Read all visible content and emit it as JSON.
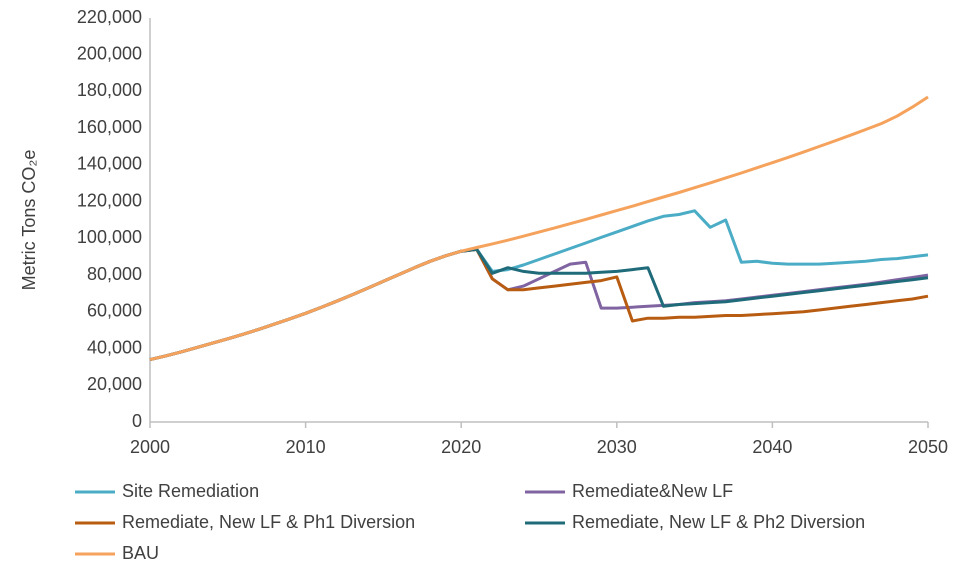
{
  "chart_data": {
    "type": "line",
    "ylabel": "Metric Tons CO₂e",
    "x": [
      2000,
      2001,
      2002,
      2003,
      2004,
      2005,
      2006,
      2007,
      2008,
      2009,
      2010,
      2011,
      2012,
      2013,
      2014,
      2015,
      2016,
      2017,
      2018,
      2019,
      2020,
      2021,
      2022,
      2023,
      2024,
      2025,
      2026,
      2027,
      2028,
      2029,
      2030,
      2031,
      2032,
      2033,
      2034,
      2035,
      2036,
      2037,
      2038,
      2039,
      2040,
      2041,
      2042,
      2043,
      2044,
      2045,
      2046,
      2047,
      2048,
      2049,
      2050
    ],
    "series": [
      {
        "name": "Site Remediation",
        "color": "#4bacc6",
        "values": [
          34000,
          36000,
          38200,
          40500,
          42900,
          45300,
          47800,
          50500,
          53300,
          56200,
          59200,
          62400,
          65800,
          69300,
          72900,
          76600,
          80300,
          84000,
          87500,
          90500,
          93000,
          94000,
          82000,
          83000,
          85500,
          88500,
          91500,
          94500,
          97500,
          100500,
          103500,
          106500,
          109500,
          112000,
          113000,
          115000,
          106000,
          110000,
          87000,
          87500,
          86500,
          86000,
          86000,
          86000,
          86500,
          87000,
          87500,
          88500,
          89000,
          90000,
          91000
        ]
      },
      {
        "name": "Remediate&New LF",
        "color": "#8064a2",
        "values": [
          34000,
          36000,
          38200,
          40500,
          42900,
          45300,
          47800,
          50500,
          53300,
          56200,
          59200,
          62400,
          65800,
          69300,
          72900,
          76600,
          80300,
          84000,
          87500,
          90500,
          93000,
          94000,
          78000,
          72000,
          74000,
          78000,
          82000,
          86000,
          87000,
          62000,
          62000,
          62500,
          63000,
          63500,
          64000,
          65000,
          65500,
          66000,
          67000,
          68000,
          69000,
          70000,
          71000,
          72000,
          73000,
          74000,
          75000,
          76200,
          77500,
          78700,
          80000
        ]
      },
      {
        "name": "Remediate, New LF & Ph1 Diversion",
        "color": "#b85c12",
        "values": [
          34000,
          36000,
          38200,
          40500,
          42900,
          45300,
          47800,
          50500,
          53300,
          56200,
          59200,
          62400,
          65800,
          69300,
          72900,
          76600,
          80300,
          84000,
          87500,
          90500,
          93000,
          94000,
          78000,
          72000,
          72000,
          73000,
          74000,
          75000,
          76000,
          77000,
          79000,
          55000,
          56500,
          56500,
          57000,
          57000,
          57500,
          58000,
          58000,
          58500,
          59000,
          59500,
          60000,
          61000,
          62000,
          63000,
          64000,
          65000,
          66000,
          67000,
          68500
        ]
      },
      {
        "name": "Remediate, New LF & Ph2 Diversion",
        "color": "#1f6b7a",
        "values": [
          34000,
          36000,
          38200,
          40500,
          42900,
          45300,
          47800,
          50500,
          53300,
          56200,
          59200,
          62400,
          65800,
          69300,
          72900,
          76600,
          80300,
          84000,
          87500,
          90500,
          93000,
          94000,
          81000,
          84000,
          82000,
          81000,
          81000,
          81000,
          81000,
          81500,
          82000,
          83000,
          84000,
          63000,
          64000,
          64500,
          65000,
          65500,
          66500,
          67500,
          68500,
          69500,
          70500,
          71500,
          72500,
          73500,
          74500,
          75500,
          76500,
          77500,
          78500
        ]
      },
      {
        "name": "BAU",
        "color": "#f5a25d",
        "values": [
          34000,
          36000,
          38200,
          40500,
          42900,
          45300,
          47800,
          50500,
          53300,
          56200,
          59200,
          62400,
          65800,
          69300,
          72900,
          76600,
          80300,
          84000,
          87500,
          90500,
          93000,
          95000,
          97000,
          99000,
          101200,
          103400,
          105700,
          108000,
          110300,
          112700,
          115100,
          117500,
          120000,
          122500,
          125000,
          127600,
          130200,
          132900,
          135600,
          138400,
          141200,
          144100,
          147000,
          150000,
          153000,
          156100,
          159300,
          162500,
          166500,
          171500,
          177000
        ]
      }
    ],
    "xlim": [
      2000,
      2050
    ],
    "xticks": [
      2000,
      2010,
      2020,
      2030,
      2040,
      2050
    ],
    "ylim": [
      0,
      220000
    ],
    "yticks": [
      0,
      {
        "value": 20000,
        "label": "20,000"
      },
      {
        "value": 40000,
        "label": "40,000"
      },
      {
        "value": 60000,
        "label": "60,000"
      },
      {
        "value": 80000,
        "label": "80,000"
      },
      {
        "value": 100000,
        "label": "100,000"
      },
      {
        "value": 120000,
        "label": "120,000"
      },
      {
        "value": 140000,
        "label": "140,000"
      },
      {
        "value": 160000,
        "label": "160,000"
      },
      {
        "value": 180000,
        "label": "180,000"
      },
      {
        "value": 200000,
        "label": "200,000"
      },
      {
        "value": 220000,
        "label": "220,000"
      }
    ],
    "grid": false,
    "legend": "bottom"
  }
}
